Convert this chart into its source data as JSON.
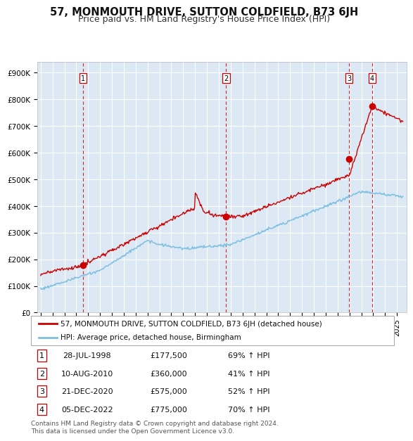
{
  "title": "57, MONMOUTH DRIVE, SUTTON COLDFIELD, B73 6JH",
  "subtitle": "Price paid vs. HM Land Registry's House Price Index (HPI)",
  "ylabel_ticks": [
    "£0",
    "£100K",
    "£200K",
    "£300K",
    "£400K",
    "£500K",
    "£600K",
    "£700K",
    "£800K",
    "£900K"
  ],
  "ytick_values": [
    0,
    100000,
    200000,
    300000,
    400000,
    500000,
    600000,
    700000,
    800000,
    900000
  ],
  "ylim": [
    0,
    940000
  ],
  "xlim_start": 1994.7,
  "xlim_end": 2025.8,
  "background_color": "#dce9f5",
  "grid_color": "#ffffff",
  "hpi_line_color": "#7fbfdf",
  "price_line_color": "#cc0000",
  "marker_color": "#cc0000",
  "vline_color": "#cc0000",
  "sale_dates_decimal": [
    1998.57,
    2010.61,
    2020.97,
    2022.92
  ],
  "sale_prices": [
    177500,
    360000,
    575000,
    775000
  ],
  "sale_labels": [
    "1",
    "2",
    "3",
    "4"
  ],
  "legend_label_red": "57, MONMOUTH DRIVE, SUTTON COLDFIELD, B73 6JH (detached house)",
  "legend_label_blue": "HPI: Average price, detached house, Birmingham",
  "table_entries": [
    {
      "num": "1",
      "date": "28-JUL-1998",
      "price": "£177,500",
      "change": "69% ↑ HPI"
    },
    {
      "num": "2",
      "date": "10-AUG-2010",
      "price": "£360,000",
      "change": "41% ↑ HPI"
    },
    {
      "num": "3",
      "date": "21-DEC-2020",
      "price": "£575,000",
      "change": "52% ↑ HPI"
    },
    {
      "num": "4",
      "date": "05-DEC-2022",
      "price": "£775,000",
      "change": "70% ↑ HPI"
    }
  ],
  "footer": "Contains HM Land Registry data © Crown copyright and database right 2024.\nThis data is licensed under the Open Government Licence v3.0.",
  "title_fontsize": 10.5,
  "subtitle_fontsize": 9,
  "tick_fontsize": 7.5,
  "legend_fontsize": 7.5,
  "table_fontsize": 8,
  "footer_fontsize": 6.5
}
